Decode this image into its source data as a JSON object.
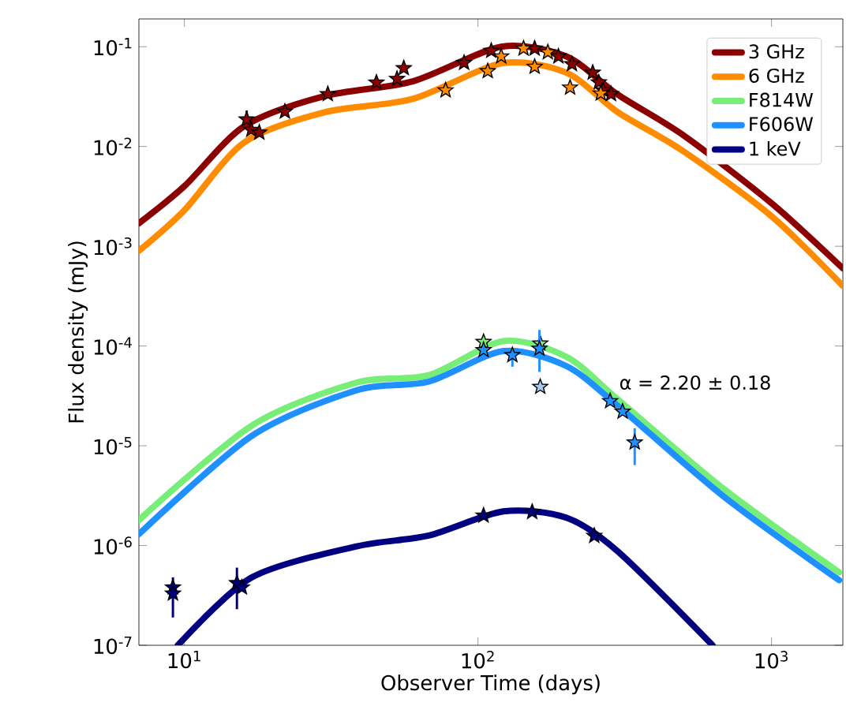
{
  "chart_data": {
    "type": "line",
    "xlabel": "Observer Time (days)",
    "ylabel": "Flux density (mJy)",
    "log": "xy",
    "legend": "top right",
    "xlim": [
      7,
      1750
    ],
    "ylim": [
      1e-07,
      0.19
    ],
    "xticks": [
      {
        "value": 10,
        "label": "10$^{1}$"
      },
      {
        "value": 100,
        "label": "10$^{2}$"
      },
      {
        "value": 1000,
        "label": "10$^{3}$"
      }
    ],
    "yticks": [
      {
        "value": 1e-07,
        "label": "10$^{-7}$"
      },
      {
        "value": 1e-06,
        "label": "10$^{-6}$"
      },
      {
        "value": 1e-05,
        "label": "10$^{-5}$"
      },
      {
        "value": 0.0001,
        "label": "10$^{-4}$"
      },
      {
        "value": 0.001,
        "label": "10$^{-3}$"
      },
      {
        "value": 0.01,
        "label": "10$^{-2}$"
      },
      {
        "value": 0.1,
        "label": "10$^{-1}$"
      }
    ],
    "annotations": [
      {
        "text": "α = 2.20 ± 0.18",
        "x": 290,
        "y": 4.3e-05
      }
    ],
    "series": [
      {
        "name": "3 GHz",
        "color": "#8b0000",
        "x": [
          7,
          10,
          16,
          30,
          60,
          120,
          200,
          300,
          500,
          1000,
          1750
        ],
        "values": [
          0.0017,
          0.004,
          0.016,
          0.032,
          0.045,
          0.1,
          0.08,
          0.033,
          0.013,
          0.0027,
          0.0006
        ]
      },
      {
        "name": "6 GHz",
        "color": "#ff8c00",
        "x": [
          7,
          10,
          16,
          30,
          60,
          120,
          200,
          300,
          500,
          1000,
          1750
        ],
        "values": [
          0.0009,
          0.0023,
          0.011,
          0.022,
          0.03,
          0.068,
          0.055,
          0.022,
          0.009,
          0.002,
          0.0004
        ]
      },
      {
        "name": "F814W",
        "color": "#77ee77",
        "x": [
          7,
          17,
          38.6,
          68,
          122,
          200,
          300,
          687,
          1700
        ],
        "values": [
          1.8e-06,
          1.6e-05,
          4.3e-05,
          5.1e-05,
          0.000112,
          7.8e-05,
          2.9e-05,
          3.7e-06,
          5.4e-07
        ]
      },
      {
        "name": "F606W",
        "color": "#1e90ff",
        "x": [
          7,
          17,
          38.6,
          68,
          122,
          200,
          300,
          687,
          1700
        ],
        "values": [
          1.3e-06,
          1.26e-05,
          3.6e-05,
          4.4e-05,
          8.9e-05,
          6.3e-05,
          2.5e-05,
          3.1e-06,
          4.5e-07
        ]
      },
      {
        "name": "1 keV",
        "color": "#000080",
        "x": [
          9.5,
          17,
          38.6,
          68,
          122,
          200,
          300,
          630
        ],
        "values": [
          1e-07,
          4.8e-07,
          9.8e-07,
          1.26e-06,
          2.2e-06,
          1.9e-06,
          8.7e-07,
          1e-07
        ]
      },
      {
        "type": "scatter",
        "marker": "star",
        "color": "#8b0000",
        "x": [
          16.3,
          16.9,
          18.0,
          22.0,
          30.8,
          45.1,
          53,
          55.9,
          89.7,
          111,
          156,
          188,
          209,
          246,
          258,
          267,
          284
        ],
        "values": [
          0.0187,
          0.0147,
          0.0138,
          0.0224,
          0.0335,
          0.0438,
          0.0476,
          0.061,
          0.069,
          0.091,
          0.096,
          0.08,
          0.067,
          0.055,
          0.044,
          0.0366,
          0.0335
        ],
        "errors": [
          [
            0.015,
            0.023
          ],
          null,
          null,
          null,
          null,
          null,
          null,
          null,
          null,
          null,
          null,
          null,
          null,
          null,
          null,
          null,
          null
        ]
      },
      {
        "type": "scatter",
        "marker": "star",
        "color": "#ff8c00",
        "x": [
          77.6,
          108,
          120,
          143,
          156,
          173,
          206,
          262
        ],
        "values": [
          0.0366,
          0.057,
          0.08,
          0.096,
          0.063,
          0.088,
          0.039,
          0.034
        ]
      },
      {
        "type": "scatter",
        "marker": "star",
        "color": "#77ee77",
        "x": [
          104.5,
          163
        ],
        "values": [
          0.00011,
          0.000106
        ]
      },
      {
        "type": "scatter",
        "marker": "star",
        "color": "#1e90ff",
        "x": [
          104.5,
          131,
          162,
          282,
          311,
          342
        ],
        "values": [
          9.1e-05,
          8.1e-05,
          9.4e-05,
          2.8e-05,
          2.2e-05,
          1.08e-05
        ],
        "errors": [
          null,
          [
            6.2e-05,
            9.4e-05
          ],
          [
            5.5e-05,
            0.000145
          ],
          null,
          null,
          [
            6.4e-06,
            1.5e-05
          ]
        ]
      },
      {
        "type": "scatter",
        "marker": "star",
        "color": "#a8c8f0",
        "x": [
          163
        ],
        "values": [
          3.9e-05
        ]
      },
      {
        "type": "scatter",
        "marker": "star",
        "color": "#000080",
        "x": [
          9.14,
          9.14,
          15.1,
          15.7,
          104.5,
          153,
          249
        ],
        "values": [
          3.8e-07,
          3.3e-07,
          4.2e-07,
          3.8e-07,
          2e-06,
          2.17e-06,
          1.25e-06
        ],
        "errors": [
          [
            1.9e-07,
            4.8e-07
          ],
          null,
          [
            2.3e-07,
            6e-07
          ],
          null,
          null,
          null,
          null
        ]
      }
    ]
  }
}
